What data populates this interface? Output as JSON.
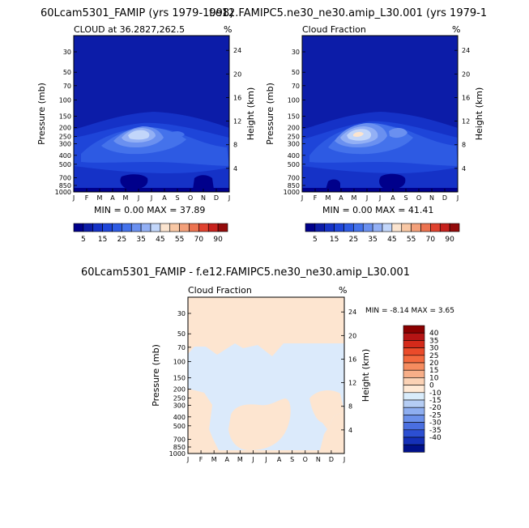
{
  "chart_data": [
    {
      "type": "heatmap",
      "title": "60Lcam5301_FAMIP (yrs 1979-1998)",
      "subtitle_left": "CLOUD at 36.2827,262.5",
      "subtitle_right": "%",
      "ylabel": "Pressure (mb)",
      "y2label": "Height (km)",
      "x_ticks": [
        "J",
        "F",
        "M",
        "A",
        "M",
        "J",
        "J",
        "A",
        "S",
        "O",
        "N",
        "D",
        "J"
      ],
      "pressure_ticks": [
        "30",
        "50",
        "70",
        "100",
        "150",
        "200",
        "250",
        "300",
        "400",
        "500",
        "700",
        "850",
        "1000"
      ],
      "height_ticks": [
        "24",
        "20",
        "16",
        "12",
        "8",
        "4"
      ],
      "stats": "MIN =    0.00 MAX =   37.89",
      "min": 0.0,
      "max": 37.89,
      "colorbar_levels": [
        "5",
        "15",
        "25",
        "35",
        "45",
        "55",
        "70",
        "90"
      ],
      "colorbar_colors": [
        "#00008b",
        "#0c1ca8",
        "#1532c7",
        "#1e45d9",
        "#2d5ae3",
        "#4472eb",
        "#6a90f0",
        "#93b0f5",
        "#c2d6fa",
        "#fbe4cf",
        "#f8c7a4",
        "#f3a07a",
        "#ec7350",
        "#e0422f",
        "#c7211d",
        "#930b0b"
      ]
    },
    {
      "type": "heatmap",
      "title": "f.e12.FAMIPC5.ne30_ne30.amip_L30.001 (yrs 1979-1",
      "subtitle_left": "Cloud Fraction",
      "subtitle_right": "%",
      "ylabel": "Pressure (mb)",
      "y2label": "Height (km)",
      "x_ticks": [
        "J",
        "F",
        "M",
        "A",
        "M",
        "J",
        "J",
        "A",
        "S",
        "O",
        "N",
        "D",
        "J"
      ],
      "pressure_ticks": [
        "30",
        "50",
        "70",
        "100",
        "150",
        "200",
        "250",
        "300",
        "400",
        "500",
        "700",
        "850",
        "1000"
      ],
      "height_ticks": [
        "24",
        "20",
        "16",
        "12",
        "8",
        "4"
      ],
      "stats": "MIN =    0.00 MAX =   41.41",
      "min": 0.0,
      "max": 41.41,
      "colorbar_levels": [
        "5",
        "15",
        "25",
        "35",
        "45",
        "55",
        "70",
        "90"
      ]
    },
    {
      "type": "heatmap",
      "title": "60Lcam5301_FAMIP - f.e12.FAMIPC5.ne30_ne30.amip_L30.001",
      "subtitle_left": "Cloud Fraction",
      "subtitle_right": "%",
      "ylabel": "Pressure (mb)",
      "y2label": "Height (km)",
      "x_ticks": [
        "J",
        "F",
        "M",
        "A",
        "M",
        "J",
        "J",
        "A",
        "S",
        "O",
        "N",
        "D",
        "J"
      ],
      "pressure_ticks": [
        "30",
        "50",
        "70",
        "100",
        "150",
        "200",
        "250",
        "300",
        "400",
        "500",
        "700",
        "850",
        "1000"
      ],
      "height_ticks": [
        "24",
        "20",
        "16",
        "12",
        "8",
        "4"
      ],
      "stats": "MIN =   -8.14 MAX =    3.65",
      "min": -8.14,
      "max": 3.65,
      "colorbar_levels": [
        "40",
        "35",
        "30",
        "25",
        "20",
        "15",
        "10",
        "0",
        "-10",
        "-15",
        "-20",
        "-25",
        "-30",
        "-35",
        "-40"
      ],
      "colorbar_colors": [
        "#8b0000",
        "#b51414",
        "#d42a1a",
        "#ea4b2a",
        "#f3693e",
        "#f58c5f",
        "#f7ae88",
        "#fbd2b5",
        "#ffe9d5",
        "#d9ecfb",
        "#b5cdf4",
        "#8eaef0",
        "#6b90ea",
        "#4a6fe0",
        "#2c4fd2",
        "#1530b8",
        "#00108a"
      ]
    }
  ]
}
